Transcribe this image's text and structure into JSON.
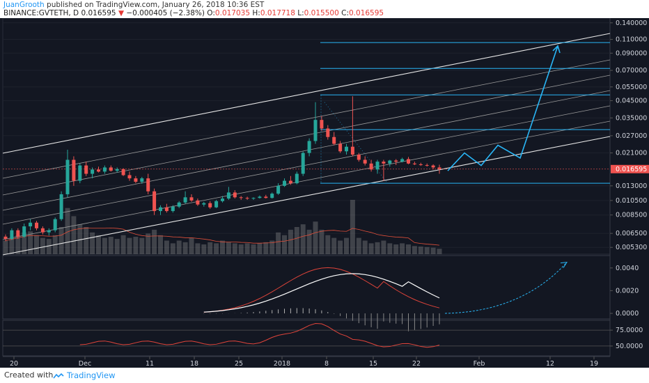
{
  "header": {
    "author": "JuanGrooth",
    "published": "published on TradingView.com, January 26, 2018 10:36 EST",
    "symbol": "BINANCE:GVTETH, D",
    "last": "0.016595",
    "change": "−0.000405 (−2.38%)",
    "o_label": "O:",
    "o": "0.017035",
    "h_label": "H:",
    "h": "0.017718",
    "l_label": "L:",
    "l": "0.015500",
    "c_label": "C:",
    "c": "0.016595"
  },
  "footer": {
    "created_with": "Created with",
    "brand": "TradingView"
  },
  "colors": {
    "background": "#131722",
    "up": "#26a69a",
    "down": "#ef5350",
    "accent": "#29b6f6",
    "channel": "#e0e0e0"
  },
  "chart_data": {
    "type": "candlestick",
    "symbol": "BINANCE:GVTETH, D",
    "x_axis_labels": [
      "20",
      "Dec",
      "11",
      "18",
      "25",
      "2018",
      "8",
      "15",
      "22",
      "Feb",
      "12",
      "19"
    ],
    "y_axis_labels": [
      "0.140000",
      "0.110000",
      "0.090000",
      "0.070000",
      "0.055000",
      "0.045000",
      "0.035000",
      "0.027000",
      "0.021000",
      "0.013000",
      "0.010500",
      "0.008500",
      "0.006500",
      "0.005300"
    ],
    "last_price_label": "0.016595",
    "fib_levels": [
      0.105,
      0.072,
      0.049,
      0.0295,
      0.0135
    ],
    "candles": [
      [
        0.0062,
        0.0064,
        0.0058,
        0.006
      ],
      [
        0.006,
        0.007,
        0.0059,
        0.0068
      ],
      [
        0.0068,
        0.007,
        0.006,
        0.0062
      ],
      [
        0.0062,
        0.0075,
        0.0061,
        0.0072
      ],
      [
        0.0072,
        0.008,
        0.0068,
        0.0076
      ],
      [
        0.0076,
        0.0078,
        0.0068,
        0.007
      ],
      [
        0.007,
        0.0072,
        0.0064,
        0.0066
      ],
      [
        0.0066,
        0.007,
        0.0063,
        0.0068
      ],
      [
        0.0068,
        0.0082,
        0.0066,
        0.008
      ],
      [
        0.008,
        0.012,
        0.0078,
        0.0115
      ],
      [
        0.0115,
        0.022,
        0.011,
        0.019
      ],
      [
        0.019,
        0.02,
        0.013,
        0.014
      ],
      [
        0.014,
        0.018,
        0.0135,
        0.0175
      ],
      [
        0.0175,
        0.0185,
        0.015,
        0.0155
      ],
      [
        0.0155,
        0.017,
        0.0145,
        0.0165
      ],
      [
        0.0165,
        0.0172,
        0.0158,
        0.016
      ],
      [
        0.016,
        0.0175,
        0.0155,
        0.017
      ],
      [
        0.017,
        0.0175,
        0.016,
        0.0162
      ],
      [
        0.0162,
        0.017,
        0.0158,
        0.0166
      ],
      [
        0.0166,
        0.0168,
        0.015,
        0.0152
      ],
      [
        0.0152,
        0.016,
        0.014,
        0.0145
      ],
      [
        0.0145,
        0.015,
        0.0135,
        0.0138
      ],
      [
        0.0138,
        0.0148,
        0.0134,
        0.0145
      ],
      [
        0.0145,
        0.0155,
        0.0115,
        0.012
      ],
      [
        0.012,
        0.0125,
        0.0085,
        0.009
      ],
      [
        0.009,
        0.0098,
        0.0085,
        0.0095
      ],
      [
        0.0095,
        0.01,
        0.0088,
        0.009
      ],
      [
        0.009,
        0.0098,
        0.0088,
        0.0096
      ],
      [
        0.0096,
        0.0104,
        0.0094,
        0.0102
      ],
      [
        0.0102,
        0.012,
        0.01,
        0.011
      ],
      [
        0.011,
        0.0115,
        0.0103,
        0.0105
      ],
      [
        0.0105,
        0.0108,
        0.0097,
        0.0099
      ],
      [
        0.0099,
        0.0103,
        0.0096,
        0.0101
      ],
      [
        0.0101,
        0.0104,
        0.0093,
        0.0095
      ],
      [
        0.0095,
        0.0106,
        0.0094,
        0.0104
      ],
      [
        0.0104,
        0.0112,
        0.0102,
        0.0108
      ],
      [
        0.0108,
        0.0128,
        0.0106,
        0.0118
      ],
      [
        0.0118,
        0.0122,
        0.0108,
        0.011
      ],
      [
        0.011,
        0.0112,
        0.0106,
        0.0109
      ],
      [
        0.0109,
        0.0111,
        0.0106,
        0.0108
      ],
      [
        0.0108,
        0.011,
        0.0106,
        0.0109
      ],
      [
        0.0109,
        0.0113,
        0.0108,
        0.0111
      ],
      [
        0.0111,
        0.0114,
        0.0108,
        0.0109
      ],
      [
        0.0109,
        0.0118,
        0.0108,
        0.0116
      ],
      [
        0.0116,
        0.0135,
        0.0114,
        0.013
      ],
      [
        0.013,
        0.0145,
        0.0128,
        0.014
      ],
      [
        0.014,
        0.015,
        0.0132,
        0.0135
      ],
      [
        0.0135,
        0.016,
        0.0133,
        0.0155
      ],
      [
        0.0155,
        0.0215,
        0.015,
        0.021
      ],
      [
        0.021,
        0.026,
        0.02,
        0.025
      ],
      [
        0.025,
        0.044,
        0.024,
        0.034
      ],
      [
        0.034,
        0.036,
        0.029,
        0.03
      ],
      [
        0.03,
        0.0315,
        0.0255,
        0.0265
      ],
      [
        0.0265,
        0.0285,
        0.0235,
        0.024
      ],
      [
        0.024,
        0.025,
        0.021,
        0.0215
      ],
      [
        0.0215,
        0.024,
        0.0205,
        0.023
      ],
      [
        0.023,
        0.048,
        0.02,
        0.0205
      ],
      [
        0.0205,
        0.021,
        0.0185,
        0.019
      ],
      [
        0.019,
        0.02,
        0.0175,
        0.018
      ],
      [
        0.018,
        0.019,
        0.016,
        0.0165
      ],
      [
        0.0165,
        0.019,
        0.0155,
        0.0185
      ],
      [
        0.0185,
        0.019,
        0.014,
        0.018
      ],
      [
        0.018,
        0.019,
        0.0172,
        0.0188
      ],
      [
        0.0188,
        0.0192,
        0.0176,
        0.0185
      ],
      [
        0.0185,
        0.0196,
        0.0183,
        0.0192
      ],
      [
        0.0192,
        0.0198,
        0.0178,
        0.018
      ],
      [
        0.018,
        0.0185,
        0.0176,
        0.0178
      ],
      [
        0.0178,
        0.0182,
        0.0174,
        0.0176
      ],
      [
        0.0176,
        0.018,
        0.0172,
        0.0175
      ],
      [
        0.0175,
        0.0178,
        0.0165,
        0.017
      ],
      [
        0.017,
        0.0177,
        0.0155,
        0.0166
      ]
    ],
    "volume_relative": [
      0.25,
      0.3,
      0.35,
      0.4,
      0.42,
      0.35,
      0.3,
      0.28,
      0.35,
      0.5,
      0.85,
      0.7,
      0.55,
      0.5,
      0.4,
      0.35,
      0.3,
      0.32,
      0.28,
      0.35,
      0.3,
      0.32,
      0.3,
      0.38,
      0.45,
      0.35,
      0.25,
      0.2,
      0.25,
      0.22,
      0.3,
      0.2,
      0.18,
      0.22,
      0.2,
      0.25,
      0.22,
      0.2,
      0.18,
      0.2,
      0.18,
      0.2,
      0.22,
      0.25,
      0.4,
      0.35,
      0.45,
      0.5,
      0.55,
      0.45,
      0.6,
      0.45,
      0.35,
      0.3,
      0.25,
      0.3,
      1.0,
      0.3,
      0.25,
      0.2,
      0.22,
      0.25,
      0.2,
      0.18,
      0.2,
      0.18,
      0.15,
      0.14,
      0.13,
      0.12,
      0.1
    ],
    "macd_axis_labels": [
      "0.0040",
      "0.0020",
      "0.0000"
    ],
    "rsi_axis_labels": [
      "75.0000",
      "50.0000"
    ]
  }
}
